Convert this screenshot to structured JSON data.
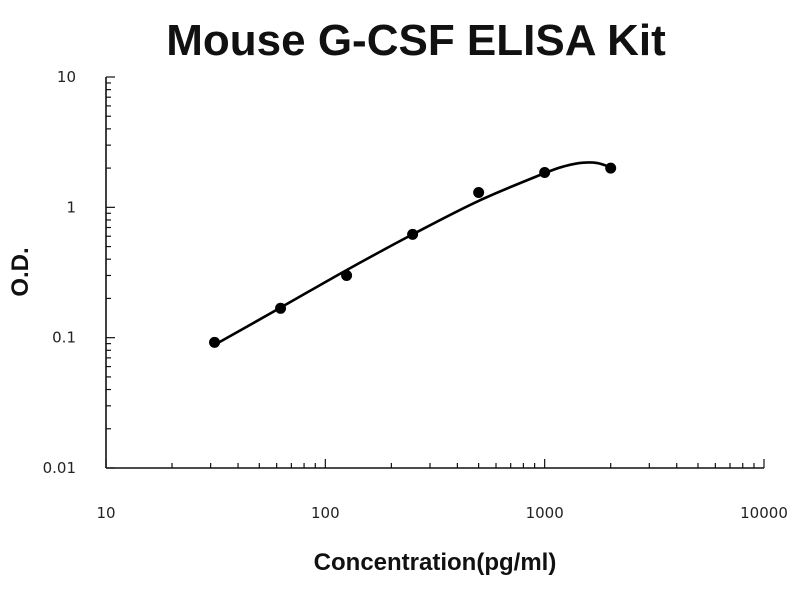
{
  "chart_data": {
    "type": "scatter",
    "title": "Mouse G-CSF ELISA Kit",
    "xlabel": "Concentration(pg/ml)",
    "ylabel": "O.D.",
    "x_scale": "log",
    "y_scale": "log",
    "xlim": [
      10,
      10000
    ],
    "ylim": [
      0.01,
      10
    ],
    "x_ticks": [
      10,
      100,
      1000,
      10000
    ],
    "x_tick_labels": [
      "10",
      "100",
      "1000",
      "10000"
    ],
    "y_ticks": [
      0.01,
      0.1,
      1,
      10
    ],
    "y_tick_labels": [
      "0.01",
      "0.1",
      "1",
      "10"
    ],
    "grid": false,
    "series": [
      {
        "x": [
          31.25,
          62.5,
          125,
          250,
          500,
          1000,
          2000
        ],
        "y": [
          0.092,
          0.168,
          0.3,
          0.62,
          1.3,
          1.85,
          2.0
        ]
      }
    ],
    "fit_curve": {
      "x": [
        31.25,
        62.5,
        125,
        250,
        500,
        1000,
        1250,
        1500,
        1750,
        2000
      ],
      "y": [
        0.088,
        0.17,
        0.33,
        0.62,
        1.12,
        1.83,
        2.08,
        2.2,
        2.18,
        2.02
      ]
    },
    "colors": {
      "points": "#000000",
      "curve": "#000000",
      "axes": "#111111"
    }
  }
}
